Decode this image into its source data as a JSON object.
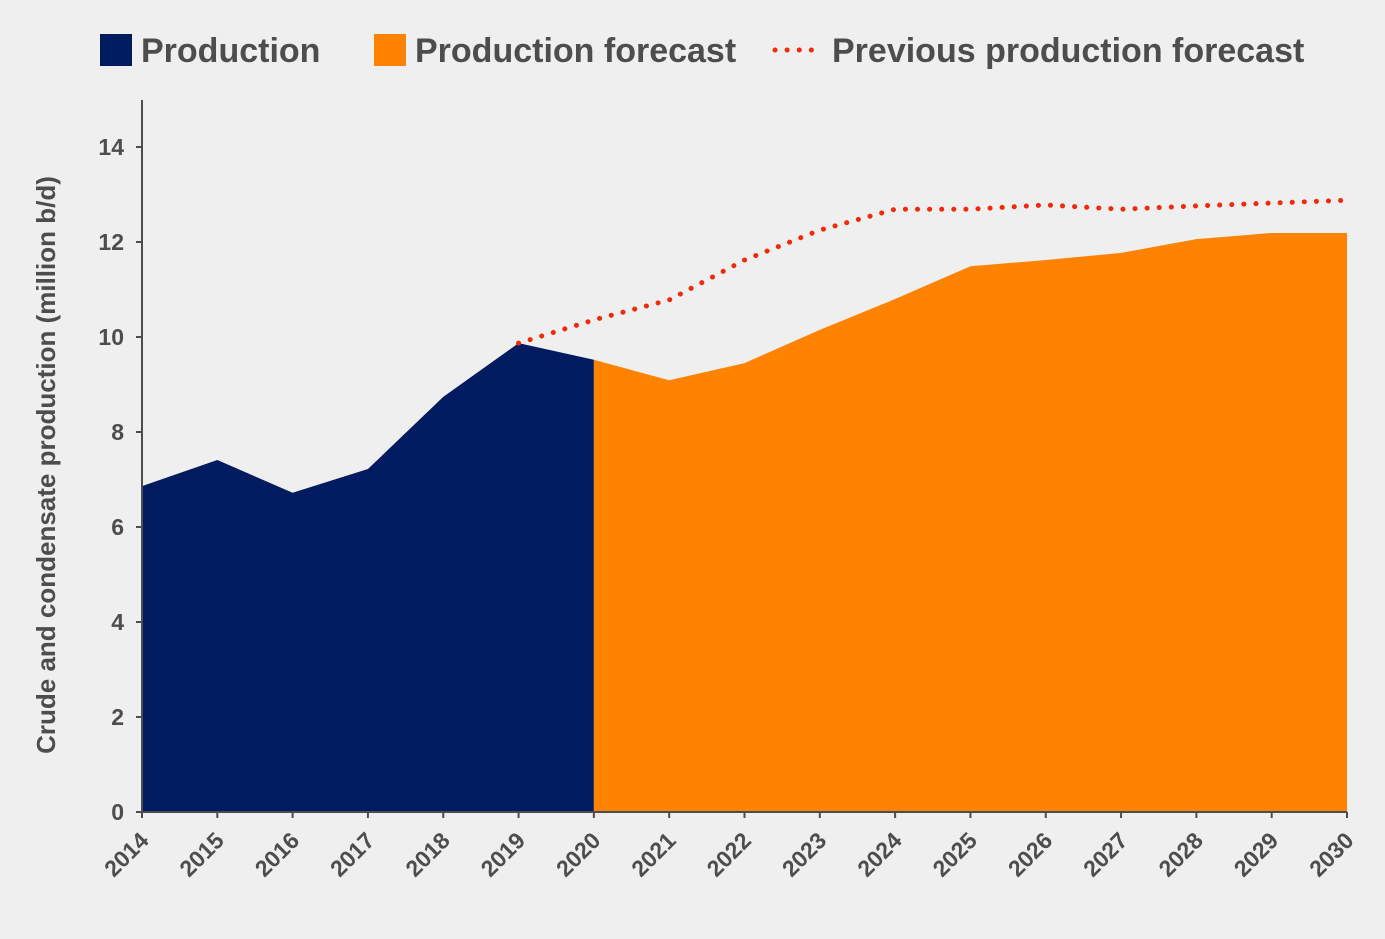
{
  "chart_data": {
    "type": "area",
    "title": "",
    "xlabel": "",
    "ylabel": "Crude and condensate production (million b/d)",
    "ylim": [
      0,
      15
    ],
    "yticks": [
      0,
      2,
      4,
      6,
      8,
      10,
      12,
      14
    ],
    "grid": false,
    "legend_position": "top",
    "x": [
      "2014",
      "2015",
      "2016",
      "2017",
      "2018",
      "2019",
      "2020",
      "2021",
      "2022",
      "2023",
      "2024",
      "2025",
      "2026",
      "2027",
      "2028",
      "2029",
      "2030"
    ],
    "series": [
      {
        "name": "Production",
        "style": "area",
        "color": "#001b60",
        "x": [
          "2014",
          "2015",
          "2016",
          "2017",
          "2018",
          "2019",
          "2020"
        ],
        "values": [
          6.86,
          7.41,
          6.72,
          7.22,
          8.74,
          9.87,
          9.52
        ]
      },
      {
        "name": "Production forecast",
        "style": "area",
        "color": "#ff8200",
        "x": [
          "2020",
          "2021",
          "2022",
          "2023",
          "2024",
          "2025",
          "2026",
          "2027",
          "2028",
          "2029",
          "2030"
        ],
        "values": [
          9.52,
          9.09,
          9.45,
          10.15,
          10.8,
          11.49,
          11.62,
          11.77,
          12.06,
          12.19,
          12.19
        ]
      },
      {
        "name": "Previous production forecast",
        "style": "dotted-line",
        "color": "#f12a0a",
        "x": [
          "2019",
          "2020",
          "2021",
          "2022",
          "2023",
          "2024",
          "2025",
          "2026",
          "2027",
          "2028",
          "2029",
          "2030"
        ],
        "values": [
          9.87,
          10.36,
          10.78,
          11.62,
          12.25,
          12.69,
          12.69,
          12.78,
          12.69,
          12.76,
          12.82,
          12.88
        ]
      }
    ]
  }
}
